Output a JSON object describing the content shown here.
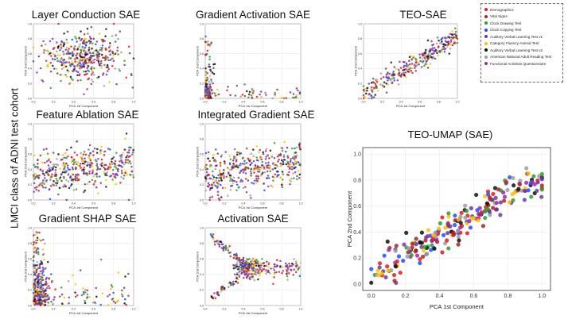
{
  "figure": {
    "side_title": "LMCI class of ADNI test cohort"
  },
  "legend": {
    "items": [
      {
        "label": "Demographics",
        "color": "#e41a1c"
      },
      {
        "label": "Vital Signs",
        "color": "#b22222"
      },
      {
        "label": "Clock Drawing Test",
        "color": "#2ca02c"
      },
      {
        "label": "Clock Copying Test",
        "color": "#1f4fff"
      },
      {
        "label": "Auditory Verbal Learning Test v1",
        "color": "#6a3d9a"
      },
      {
        "label": "Category Fluency-Animal Test",
        "color": "#ffbf00"
      },
      {
        "label": "Auditory Verbal Learning Test v2",
        "color": "#111111"
      },
      {
        "label": "American National Adult Reading Test",
        "color": "#9e9e9e"
      },
      {
        "label": "Functional Activities Questionnaire",
        "color": "#9b27b0"
      }
    ]
  },
  "chart_data": [
    {
      "id": "layer-conduction",
      "type": "scatter",
      "title": "Layer Conduction SAE",
      "xlabel": "PCA 1st Component",
      "ylabel": "PCA 2nd Component",
      "xlim": [
        0,
        1
      ],
      "ylim": [
        0,
        1
      ],
      "xticks": [
        "0.0",
        "0.2",
        "0.4",
        "0.6",
        "0.8",
        "1.0"
      ],
      "yticks": [
        "0.0",
        "0.2",
        "0.4",
        "0.6",
        "0.8",
        "1.0"
      ],
      "pattern": "cloud",
      "n": 420,
      "grid": true
    },
    {
      "id": "gradient-activation",
      "type": "scatter",
      "title": "Gradient Activation SAE",
      "xlabel": "PCA 1st Component",
      "ylabel": "PCA 2nd Component",
      "xlim": [
        0,
        1
      ],
      "ylim": [
        0,
        1
      ],
      "xticks": [
        "0.0",
        "0.2",
        "0.4",
        "0.6",
        "0.8",
        "1.0"
      ],
      "yticks": [
        "0.0",
        "0.2",
        "0.4",
        "0.6",
        "0.8",
        "1.0"
      ],
      "pattern": "lshape",
      "n": 300,
      "grid": true
    },
    {
      "id": "teo-sae",
      "type": "scatter",
      "title": "TEO-SAE",
      "xlabel": "PCA 1st Component",
      "ylabel": "PCA 2nd Component",
      "xlim": [
        0,
        1
      ],
      "ylim": [
        0,
        1
      ],
      "xticks": [
        "0.0",
        "0.2",
        "0.4",
        "0.6",
        "0.8",
        "1.0"
      ],
      "yticks": [
        "0.0",
        "0.2",
        "0.4",
        "0.6",
        "0.8",
        "1.0"
      ],
      "pattern": "diagonal",
      "n": 300,
      "grid": true
    },
    {
      "id": "feature-ablation",
      "type": "scatter",
      "title": "Feature Ablation SAE",
      "xlabel": "PCA 1st Component",
      "ylabel": "PCA 2nd Component",
      "xlim": [
        0,
        1
      ],
      "ylim": [
        0,
        1
      ],
      "xticks": [
        "0.0",
        "0.2",
        "0.4",
        "0.6",
        "0.8",
        "1.0"
      ],
      "yticks": [
        "0.0",
        "0.2",
        "0.4",
        "0.6",
        "0.8",
        "1.0"
      ],
      "pattern": "band",
      "n": 420,
      "grid": true
    },
    {
      "id": "integrated-gradient",
      "type": "scatter",
      "title": "Integrated Gradient SAE",
      "xlabel": "PCA 1st Component",
      "ylabel": "PCA 2nd Component",
      "xlim": [
        0,
        1
      ],
      "ylim": [
        0,
        1
      ],
      "xticks": [
        "0.0",
        "0.2",
        "0.4",
        "0.6",
        "0.8",
        "1.0"
      ],
      "yticks": [
        "0.0",
        "0.2",
        "0.4",
        "0.6",
        "0.8",
        "1.0"
      ],
      "pattern": "band",
      "n": 420,
      "grid": true
    },
    {
      "id": "gradient-shap",
      "type": "scatter",
      "title": "Gradient SHAP SAE",
      "xlabel": "PCA 1st Component",
      "ylabel": "PCA 2nd Component",
      "xlim": [
        0,
        1
      ],
      "ylim": [
        0,
        1
      ],
      "xticks": [
        "0.0",
        "0.2",
        "0.4",
        "0.6",
        "0.8",
        "1.0"
      ],
      "yticks": [
        "0.0",
        "0.2",
        "0.4",
        "0.6",
        "0.8",
        "1.0"
      ],
      "pattern": "lshape2",
      "n": 360,
      "grid": true
    },
    {
      "id": "activation",
      "type": "scatter",
      "title": "Activation SAE",
      "xlabel": "PCA 1st Component",
      "ylabel": "PCA 2nd Component",
      "xlim": [
        0,
        1
      ],
      "ylim": [
        0,
        1
      ],
      "xticks": [
        "0.0",
        "0.2",
        "0.4",
        "0.6",
        "0.8",
        "1.0"
      ],
      "yticks": [
        "0.0",
        "0.2",
        "0.4",
        "0.6",
        "0.8",
        "1.0"
      ],
      "pattern": "bowtie",
      "n": 380,
      "grid": true
    },
    {
      "id": "teo-umap",
      "type": "scatter",
      "title": "TEO-UMAP (SAE)",
      "xlabel": "PCA 1st Component",
      "ylabel": "PCA 2nd Component",
      "xlim": [
        -0.05,
        1.05
      ],
      "ylim": [
        -0.05,
        1.05
      ],
      "xticks": [
        "0.0",
        "0.2",
        "0.4",
        "0.6",
        "0.8",
        "1.0"
      ],
      "yticks": [
        "0.0",
        "0.2",
        "0.4",
        "0.6",
        "0.8",
        "1.0"
      ],
      "pattern": "diagonal",
      "n": 240,
      "grid": true
    }
  ]
}
